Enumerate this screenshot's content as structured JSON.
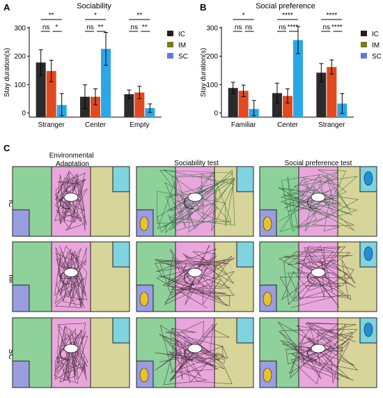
{
  "panel_letters": {
    "a": "A",
    "b": "B",
    "c": "C"
  },
  "colors": {
    "IC": "#2b2b2b",
    "IM": "#e04a1f",
    "SC": "#2aa7e8",
    "legend_IC": "#2a1a1f",
    "legend_IM": "#7a7a20",
    "legend_SC": "#5b79e0",
    "zone_green": "#8fd19a",
    "zone_pink": "#e9a6dc",
    "zone_khaki": "#d8d59a",
    "box_blue": "#9a9ee0",
    "box_cyan": "#7fd4e0"
  },
  "legend_labels": [
    "IC",
    "IM",
    "SC"
  ],
  "chart_data": [
    {
      "type": "bar",
      "title": "Sociability",
      "ylabel": "Stay duration(s)",
      "ylim": [
        0,
        300
      ],
      "yticks": [
        "0",
        "100",
        "200",
        "300"
      ],
      "categories": [
        "Stranger",
        "Center",
        "Empty"
      ],
      "series": [
        {
          "name": "IC",
          "values": [
            178,
            57,
            66
          ],
          "errors": [
            45,
            42,
            15
          ]
        },
        {
          "name": "IM",
          "values": [
            148,
            57,
            72
          ],
          "errors": [
            38,
            28,
            22
          ]
        },
        {
          "name": "SC",
          "values": [
            28,
            226,
            17
          ],
          "errors": [
            40,
            58,
            15
          ]
        }
      ],
      "significance": [
        {
          "top": "**",
          "left": "ns",
          "right": "*"
        },
        {
          "top": "*",
          "left": "ns",
          "right": "**"
        },
        {
          "top": "**",
          "left": "ns",
          "right": "**"
        }
      ],
      "legend": "right"
    },
    {
      "type": "bar",
      "title": "Social preference",
      "ylabel": "Stay duration(s)",
      "ylim": [
        0,
        300
      ],
      "yticks": [
        "0",
        "100",
        "200",
        "300"
      ],
      "categories": [
        "Familiar",
        "Center",
        "Stranger"
      ],
      "series": [
        {
          "name": "IC",
          "values": [
            88,
            70,
            142
          ],
          "errors": [
            20,
            35,
            32
          ]
        },
        {
          "name": "IM",
          "values": [
            78,
            60,
            162
          ],
          "errors": [
            20,
            25,
            25
          ]
        },
        {
          "name": "SC",
          "values": [
            14,
            257,
            33
          ],
          "errors": [
            30,
            48,
            35
          ]
        }
      ],
      "significance": [
        {
          "top": "*",
          "left": "ns",
          "right": "ns"
        },
        {
          "top": "****",
          "left": "ns",
          "right": "****"
        },
        {
          "top": "****",
          "left": "ns",
          "right": "****"
        }
      ],
      "legend": "right"
    }
  ],
  "grid": {
    "column_titles": [
      "Environmental\nAdaptation",
      "Sociability test",
      "Social preference test"
    ],
    "row_labels": [
      "IC",
      "IM",
      "SC"
    ]
  }
}
